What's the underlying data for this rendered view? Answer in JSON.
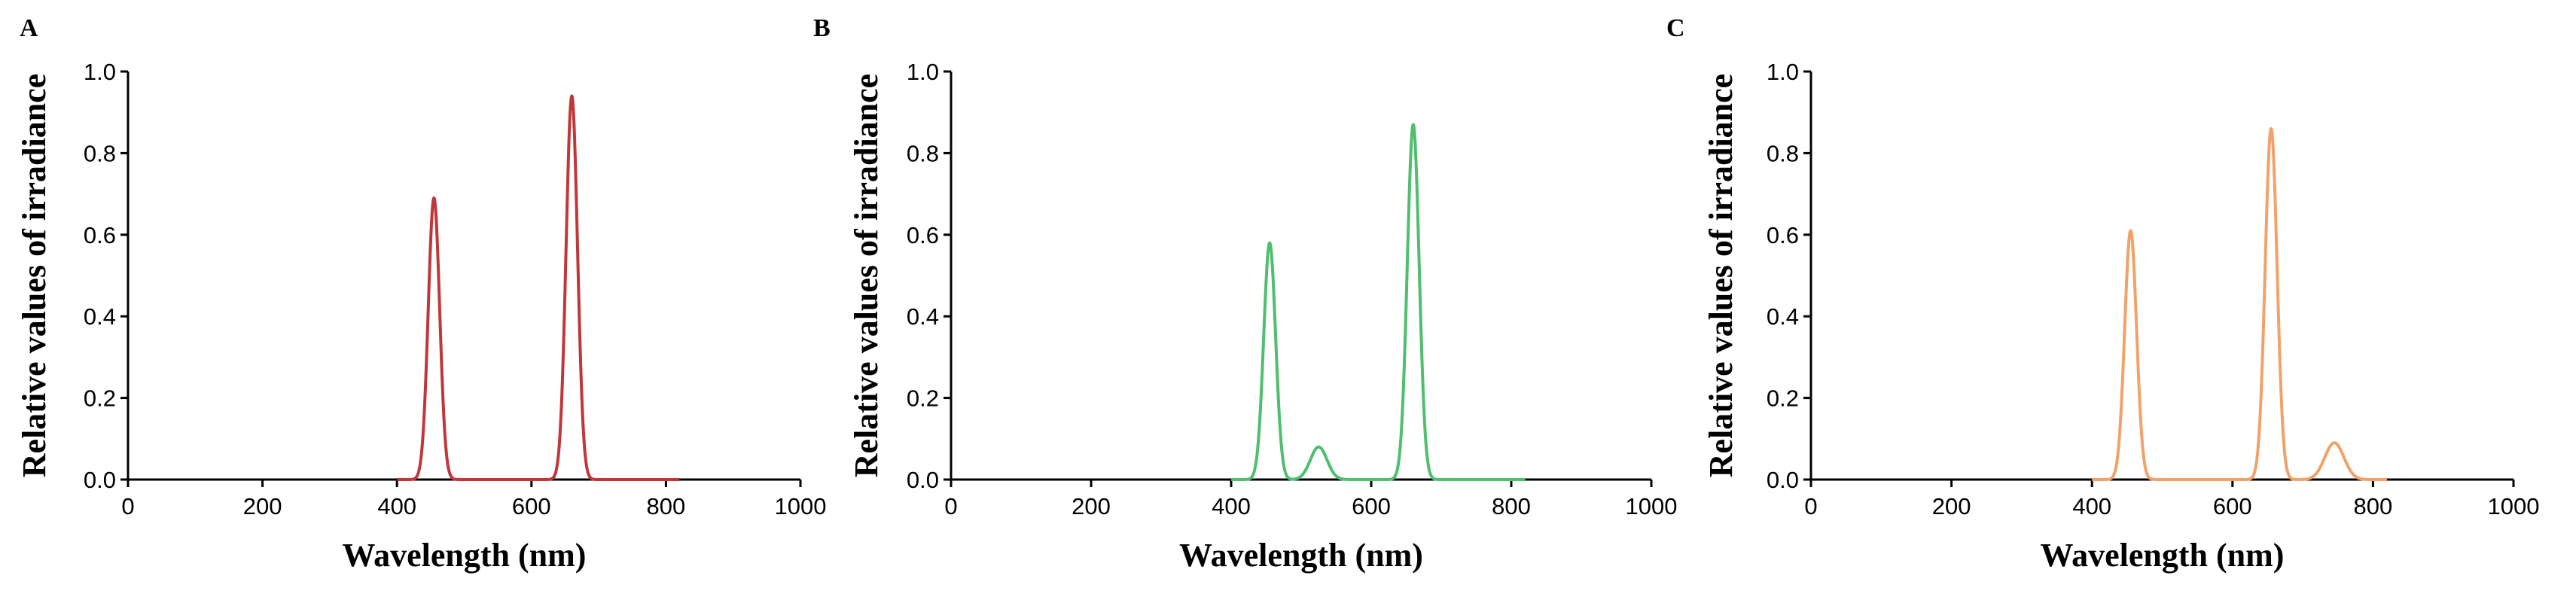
{
  "chart_data": [
    {
      "panel": "A",
      "type": "line",
      "xlabel": "Wavelength (nm)",
      "ylabel": "Relative values of  irradiance",
      "xlim": [
        0,
        1000
      ],
      "ylim": [
        0,
        1.0
      ],
      "xticks": [
        "0",
        "200",
        "400",
        "600",
        "800",
        "1000"
      ],
      "yticks": [
        "0.0",
        "0.2",
        "0.4",
        "0.6",
        "0.8",
        "1.0"
      ],
      "grid": false,
      "series": [
        {
          "color": "#c0373a",
          "peaks": [
            {
              "center": 455,
              "height": 0.69,
              "fwhm": 20
            },
            {
              "center": 660,
              "height": 0.94,
              "fwhm": 20
            }
          ]
        }
      ]
    },
    {
      "panel": "B",
      "type": "line",
      "xlabel": "Wavelength (nm)",
      "ylabel": "Relative values of  irradiance",
      "xlim": [
        0,
        1000
      ],
      "ylim": [
        0,
        1.0
      ],
      "xticks": [
        "0",
        "200",
        "400",
        "600",
        "800",
        "1000"
      ],
      "yticks": [
        "0.0",
        "0.2",
        "0.4",
        "0.6",
        "0.8",
        "1.0"
      ],
      "grid": false,
      "series": [
        {
          "color": "#4fbe6e",
          "peaks": [
            {
              "center": 455,
              "height": 0.58,
              "fwhm": 20
            },
            {
              "center": 525,
              "height": 0.08,
              "fwhm": 28
            },
            {
              "center": 660,
              "height": 0.87,
              "fwhm": 20
            }
          ]
        }
      ]
    },
    {
      "panel": "C",
      "type": "line",
      "xlabel": "Wavelength (nm)",
      "ylabel": "Relative values of irradiance",
      "xlim": [
        0,
        1000
      ],
      "ylim": [
        0,
        1.0
      ],
      "xticks": [
        "0",
        "200",
        "400",
        "600",
        "800",
        "1000"
      ],
      "yticks": [
        "0.0",
        "0.2",
        "0.4",
        "0.6",
        "0.8",
        "1.0"
      ],
      "grid": false,
      "series": [
        {
          "color": "#f0a26a",
          "peaks": [
            {
              "center": 455,
              "height": 0.61,
              "fwhm": 20
            },
            {
              "center": 655,
              "height": 0.86,
              "fwhm": 20
            },
            {
              "center": 745,
              "height": 0.09,
              "fwhm": 32
            }
          ]
        }
      ]
    }
  ]
}
